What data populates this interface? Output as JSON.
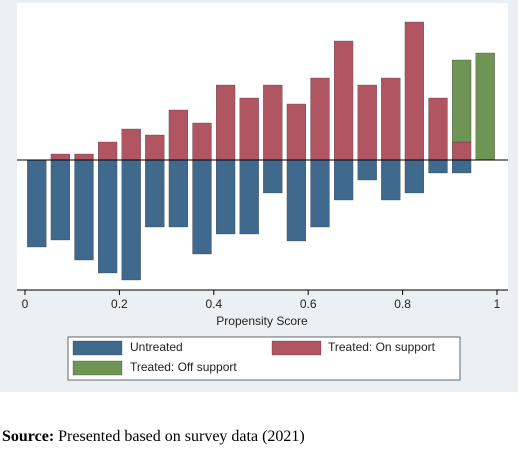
{
  "chart_data": {
    "type": "mirror-histogram",
    "x_label": "Propensity Score",
    "bins": [
      0,
      0.05,
      0.1,
      0.15,
      0.2,
      0.25,
      0.3,
      0.35,
      0.4,
      0.45,
      0.5,
      0.55,
      0.6,
      0.65,
      0.7,
      0.75,
      0.8,
      0.85,
      0.9,
      0.95,
      1
    ],
    "series": [
      {
        "name": "Untreated",
        "color": "#3f6a8e",
        "values": [
          -87,
          -80,
          -100,
          -113,
          -120,
          -67,
          -67,
          -94,
          -74,
          -74,
          -33,
          -81,
          -67,
          -40,
          -20,
          -40,
          -33,
          -13,
          -13,
          0
        ]
      },
      {
        "name": "Treated: On support",
        "color": "#b25563",
        "values": [
          0,
          6,
          6,
          18,
          31,
          25,
          50,
          37,
          75,
          62,
          75,
          56,
          82,
          119,
          75,
          82,
          138,
          62,
          18,
          0
        ]
      },
      {
        "name": "Treated: Off support",
        "color": "#6e9554",
        "values": [
          0,
          0,
          0,
          0,
          0,
          0,
          0,
          0,
          0,
          0,
          0,
          0,
          0,
          0,
          0,
          0,
          0,
          0,
          82,
          107
        ],
        "stack_on": 1
      }
    ],
    "xlim": [
      0,
      1
    ],
    "xticks": [
      0,
      0.2,
      0.4,
      0.6,
      0.8,
      1
    ],
    "ylim": [
      -130,
      152
    ]
  },
  "source": {
    "label": "Source:",
    "text": "Presented based on survey data (2021)"
  }
}
